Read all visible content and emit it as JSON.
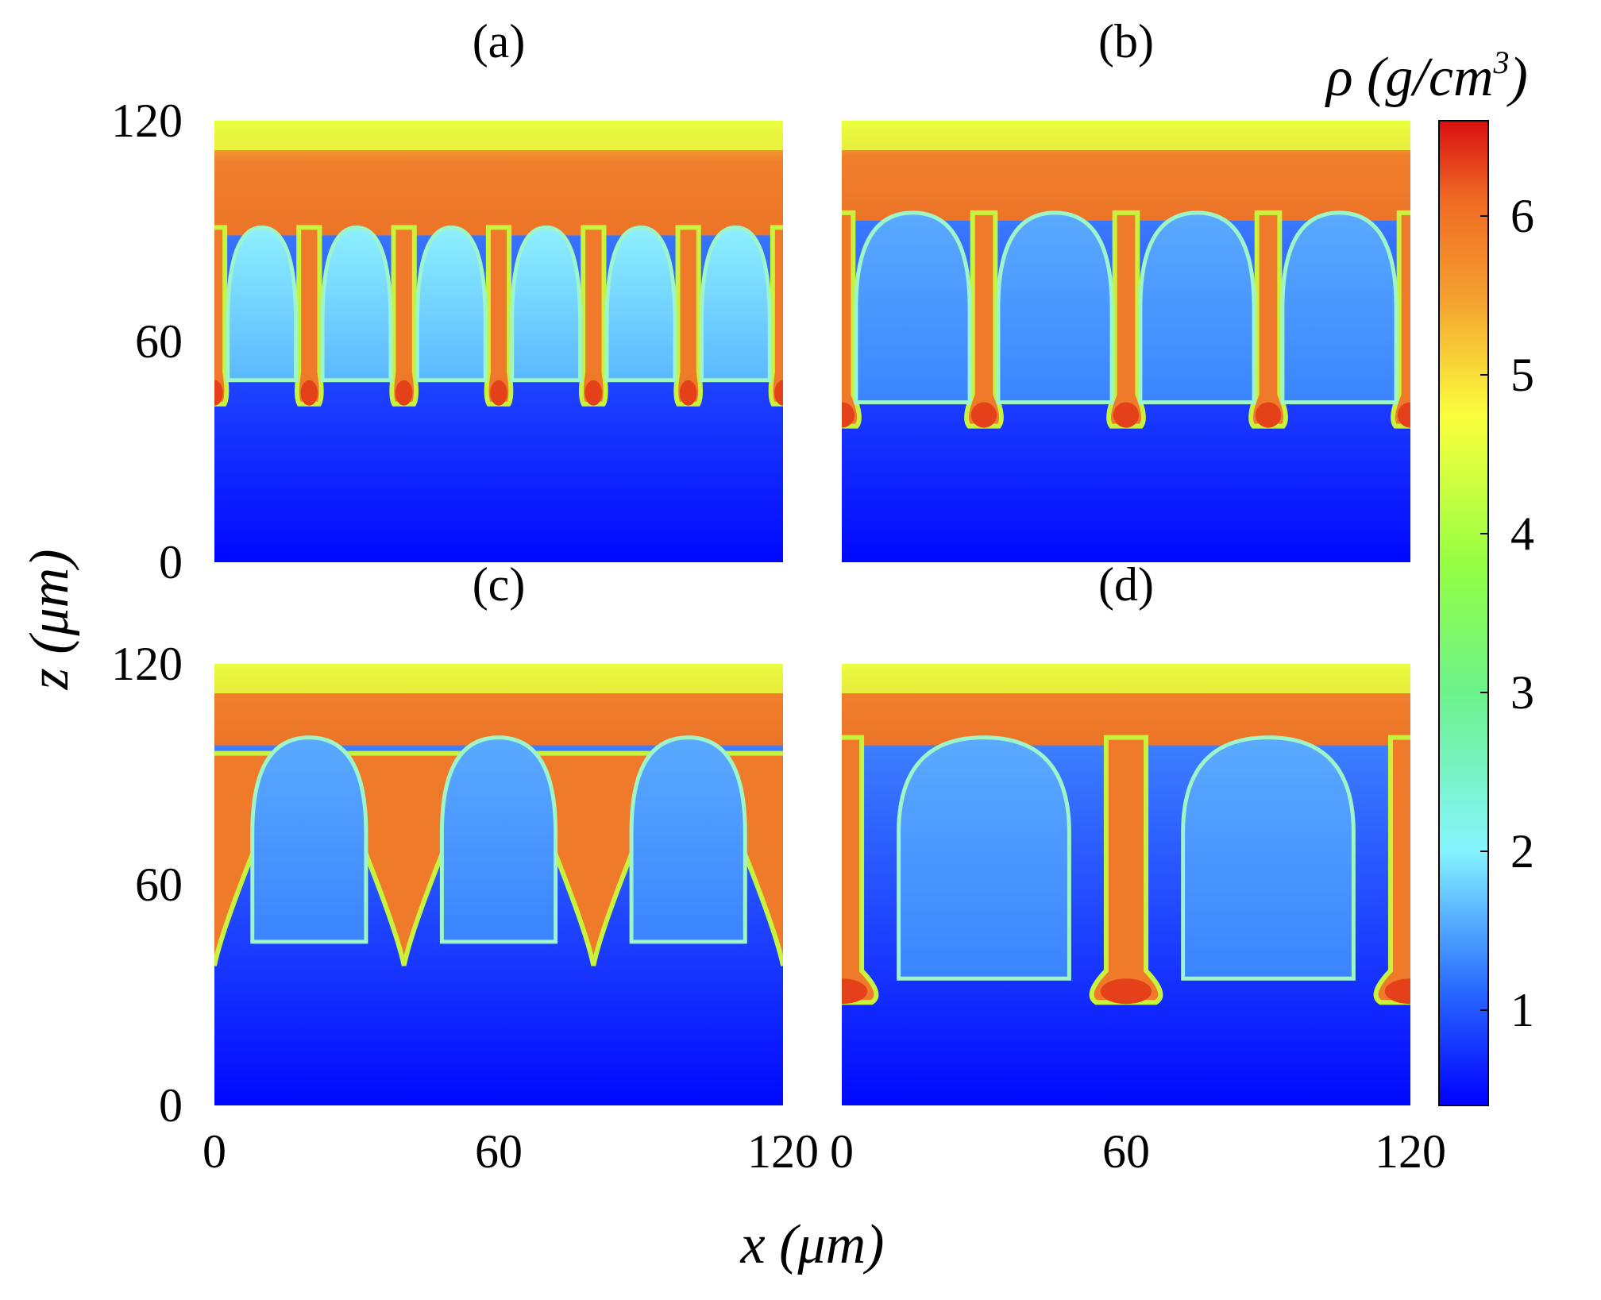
{
  "chart_data": {
    "type": "heatmap",
    "description_quantity": "density",
    "colorbar": {
      "label": "ρ (g/cm³)",
      "label_symbol": "ρ",
      "label_units": "(g/cm",
      "label_exp": "3",
      "label_close": ")",
      "ticks": [
        "1",
        "2",
        "3",
        "4",
        "5",
        "6"
      ],
      "range": [
        0.4,
        6.6
      ],
      "colormap": [
        "#0000ff",
        "#3f8cff",
        "#86f4ff",
        "#95ff43",
        "#fbff3d",
        "#f58330",
        "#e01414"
      ]
    },
    "xaxis": {
      "label_var": "x",
      "label_unit": "(μm)",
      "range": [
        0,
        120
      ],
      "ticks": [
        "0",
        "60",
        "120"
      ]
    },
    "yaxis": {
      "label_var": "z",
      "label_unit": "(μm)",
      "range": [
        0,
        120
      ],
      "ticks": [
        "0",
        "60",
        "120"
      ]
    },
    "panels": [
      {
        "label": "(a)",
        "bubble_count": 6,
        "spike_tip_z": 43,
        "bubble_top_z": 91,
        "free_surface_z": 112
      },
      {
        "label": "(b)",
        "bubble_count": 4,
        "spike_tip_z": 37,
        "bubble_top_z": 95,
        "free_surface_z": 112
      },
      {
        "label": "(c)",
        "bubble_count": 3,
        "spike_tip_z": 38,
        "bubble_top_z": 100,
        "free_surface_z": 112
      },
      {
        "label": "(d)",
        "bubble_count": 2,
        "spike_tip_z": 28,
        "bubble_top_z": 100,
        "free_surface_z": 112
      }
    ]
  }
}
